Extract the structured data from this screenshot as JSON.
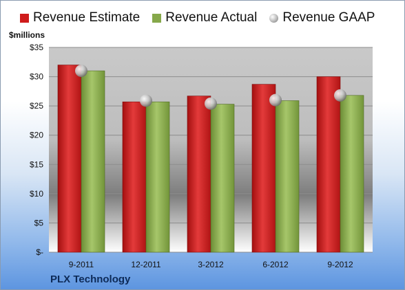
{
  "legend": {
    "estimate": "Revenue Estimate",
    "actual": "Revenue Actual",
    "gaap": "Revenue GAAP"
  },
  "unit_label": "$millions",
  "company": "PLX Technology",
  "colors": {
    "estimate": "#cf1b1b",
    "actual": "#86a84a",
    "gaap": "#b9b9b9"
  },
  "chart_data": {
    "type": "bar",
    "title": "",
    "xlabel": "",
    "ylabel": "$millions",
    "categories": [
      "9-2011",
      "12-2011",
      "3-2012",
      "6-2012",
      "9-2012"
    ],
    "series": [
      {
        "name": "Revenue Estimate",
        "type": "bar",
        "values": [
          32.0,
          25.7,
          26.7,
          28.7,
          30.0
        ]
      },
      {
        "name": "Revenue Actual",
        "type": "bar",
        "values": [
          31.0,
          25.7,
          25.3,
          25.9,
          26.8
        ]
      },
      {
        "name": "Revenue GAAP",
        "type": "marker",
        "values": [
          31.0,
          25.9,
          25.4,
          26.0,
          26.8
        ]
      }
    ],
    "ylim": [
      0,
      35
    ],
    "yticks": [
      0,
      5,
      10,
      15,
      20,
      25,
      30,
      35
    ],
    "ytick_labels": [
      "$-",
      "$5",
      "$10",
      "$15",
      "$20",
      "$25",
      "$30",
      "$35"
    ],
    "grid": true,
    "legend_position": "top"
  }
}
